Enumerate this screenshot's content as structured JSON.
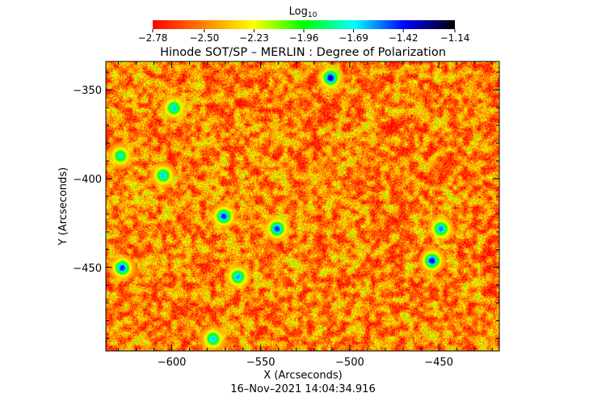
{
  "chart_data": {
    "type": "heatmap",
    "title": "Hinode SOT/SP – MERLIN : Degree of Polarization",
    "xlabel": "X (Arcseconds)",
    "ylabel": "Y (Arcseconds)",
    "xlim": [
      -637,
      -416
    ],
    "ylim": [
      -497,
      -334
    ],
    "x_ticks": [
      -600,
      -550,
      -500,
      -450
    ],
    "y_ticks": [
      -350,
      -400,
      -450
    ],
    "x_tick_labels": [
      "−600",
      "−550",
      "−500",
      "−450"
    ],
    "y_tick_labels": [
      "−350",
      "−400",
      "−450"
    ],
    "timestamp": "16–Nov–2021 14:04:34.916",
    "colorbar": {
      "label_main": "Log",
      "label_sub": "10",
      "scale": "log10",
      "range": [
        -2.78,
        -1.14
      ],
      "ticks": [
        -2.78,
        -2.5,
        -2.23,
        -1.96,
        -1.69,
        -1.42,
        -1.14
      ],
      "tick_labels": [
        "−2.78",
        "−2.50",
        "−2.23",
        "−1.96",
        "−1.69",
        "−1.42",
        "−1.14"
      ],
      "colormap": [
        "#ff0000",
        "#ff8000",
        "#ffff00",
        "#00ff00",
        "#00ffff",
        "#0000ff",
        "#000000"
      ]
    },
    "background_value": -2.5,
    "features": [
      {
        "x": -511,
        "y": -343,
        "peak": -1.3
      },
      {
        "x": -541,
        "y": -428,
        "peak": -1.4
      },
      {
        "x": -571,
        "y": -421,
        "peak": -1.4
      },
      {
        "x": -628,
        "y": -450,
        "peak": -1.4
      },
      {
        "x": -454,
        "y": -446,
        "peak": -1.35
      },
      {
        "x": -449,
        "y": -428,
        "peak": -1.5
      },
      {
        "x": -599,
        "y": -360,
        "peak": -1.6
      },
      {
        "x": -563,
        "y": -455,
        "peak": -1.55
      },
      {
        "x": -577,
        "y": -490,
        "peak": -1.6
      },
      {
        "x": -629,
        "y": -387,
        "peak": -1.7
      },
      {
        "x": -605,
        "y": -398,
        "peak": -1.6
      }
    ]
  }
}
